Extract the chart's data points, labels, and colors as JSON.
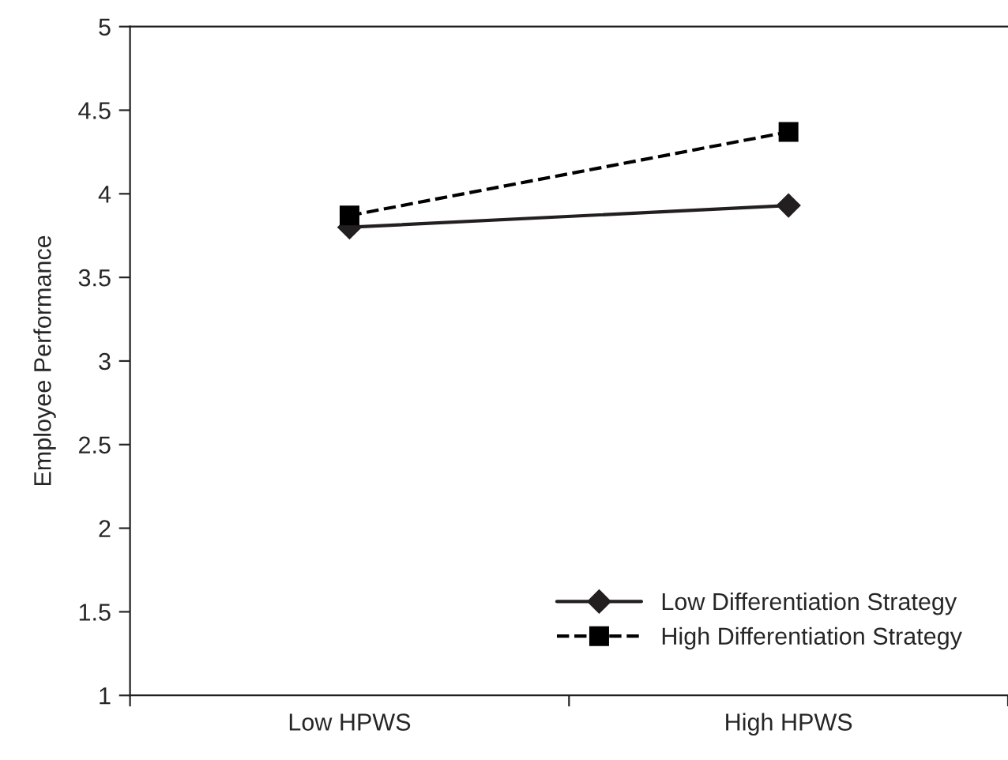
{
  "chart_data": {
    "type": "line",
    "ylabel": "Employee Performance",
    "categories": [
      "Low HPWS",
      "High HPWS"
    ],
    "series": [
      {
        "name": "Low Differentiation Strategy",
        "color": "#231f20",
        "values": [
          3.8,
          3.93
        ],
        "marker": "diamond",
        "line_style": "solid"
      },
      {
        "name": "High Differentiation Strategy",
        "color": "#000000",
        "values": [
          3.87,
          4.37
        ],
        "marker": "square",
        "line_style": "dashed"
      }
    ],
    "ylim": [
      1,
      5
    ],
    "yticks": [
      1,
      1.5,
      2,
      2.5,
      3,
      3.5,
      4,
      4.5,
      5
    ],
    "grid": false,
    "legend": "bottom right"
  }
}
